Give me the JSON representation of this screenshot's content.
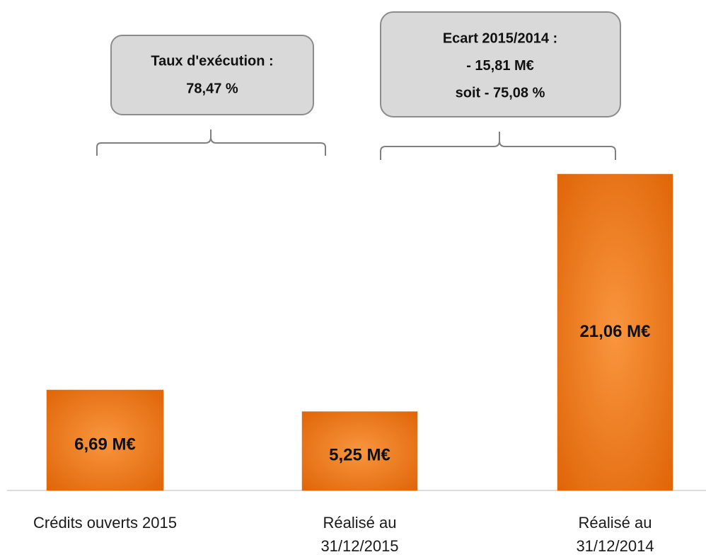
{
  "chart_data": {
    "type": "bar",
    "categories": [
      "Crédits ouverts 2015",
      "Réalisé au\n31/12/2015",
      "Réalisé au\n31/12/2014"
    ],
    "values": [
      6.69,
      5.25,
      21.06
    ],
    "value_labels": [
      "6,69 M€",
      "5,25 M€",
      "21,06 M€"
    ],
    "color": "#e46c0a",
    "annotations": [
      {
        "lines": [
          "Taux d'exécution :",
          "78,47 %"
        ]
      },
      {
        "lines": [
          "Ecart 2015/2014 :",
          "- 15,81 M€",
          "soit - 75,08 %"
        ]
      }
    ]
  }
}
